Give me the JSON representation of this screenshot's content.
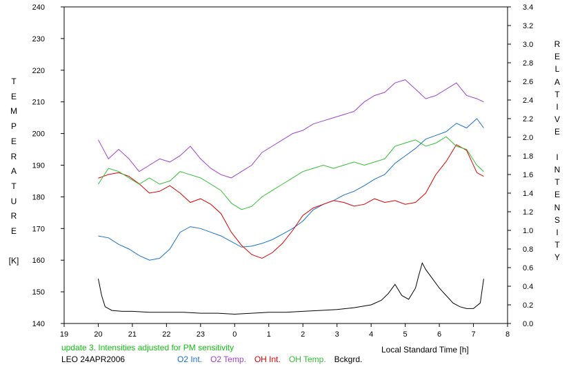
{
  "chart_data": {
    "type": "line",
    "xlabel": "Local Standard Time [h]",
    "ylabel_left": [
      "T",
      "E",
      "M",
      "P",
      "E",
      "R",
      "A",
      "T",
      "U",
      "R",
      "E",
      "",
      "[K]"
    ],
    "ylabel_right": [
      "R",
      "E",
      "L",
      "A",
      "T",
      "I",
      "V",
      "E",
      "",
      "I",
      "N",
      "T",
      "E",
      "N",
      "S",
      "I",
      "T",
      "Y"
    ],
    "x_ticks": [
      "19",
      "20",
      "21",
      "22",
      "23",
      "0",
      "1",
      "2",
      "3",
      "4",
      "5",
      "6",
      "7",
      "8"
    ],
    "y_left_ticks": [
      "140",
      "150",
      "160",
      "170",
      "180",
      "190",
      "200",
      "210",
      "220",
      "230",
      "240"
    ],
    "y_right_ticks": [
      "0.0",
      "0.2",
      "0.4",
      "0.6",
      "0.8",
      "1.0",
      "1.2",
      "1.4",
      "1.6",
      "1.8",
      "2.0",
      "2.2",
      "2.4",
      "2.6",
      "2.8",
      "3.0",
      "3.2",
      "3.4"
    ],
    "xlim": [
      19,
      32
    ],
    "ylim_left": [
      140,
      240
    ],
    "ylim_right": [
      0,
      3.4
    ],
    "grid": false,
    "note": "update 3. Intensities adjusted for PM sensitivity",
    "site_date": "LEO 24APR2006",
    "series": [
      {
        "name": "O2 Int.",
        "axis": "right",
        "color": "#1a6fd0",
        "x": [
          20.0,
          20.3,
          20.6,
          20.9,
          21.2,
          21.5,
          21.8,
          22.1,
          22.4,
          22.7,
          23.0,
          23.3,
          23.6,
          23.9,
          24.2,
          24.5,
          24.8,
          25.1,
          25.4,
          25.7,
          26.0,
          26.3,
          26.6,
          26.9,
          27.2,
          27.5,
          27.8,
          28.1,
          28.4,
          28.7,
          29.0,
          29.3,
          29.6,
          29.9,
          30.2,
          30.5,
          30.8,
          31.1,
          31.3
        ],
        "y": [
          0.94,
          0.92,
          0.85,
          0.8,
          0.73,
          0.68,
          0.7,
          0.8,
          0.98,
          1.04,
          1.02,
          0.98,
          0.94,
          0.88,
          0.82,
          0.83,
          0.86,
          0.9,
          0.96,
          1.02,
          1.1,
          1.22,
          1.28,
          1.32,
          1.38,
          1.42,
          1.48,
          1.55,
          1.6,
          1.72,
          1.8,
          1.88,
          1.98,
          2.02,
          2.06,
          2.15,
          2.1,
          2.2,
          2.1
        ]
      },
      {
        "name": "O2 Temp.",
        "axis": "left",
        "color": "#a040d0",
        "x": [
          20.0,
          20.3,
          20.6,
          20.9,
          21.2,
          21.5,
          21.8,
          22.1,
          22.4,
          22.7,
          23.0,
          23.3,
          23.6,
          23.9,
          24.2,
          24.5,
          24.8,
          25.1,
          25.4,
          25.7,
          26.0,
          26.3,
          26.6,
          26.9,
          27.2,
          27.5,
          27.8,
          28.1,
          28.4,
          28.7,
          29.0,
          29.3,
          29.6,
          29.9,
          30.2,
          30.5,
          30.8,
          31.1,
          31.3
        ],
        "y": [
          198,
          192,
          195,
          192,
          188,
          190,
          192,
          191,
          193,
          196,
          192,
          189,
          187,
          186,
          188,
          190,
          194,
          196,
          198,
          200,
          201,
          203,
          204,
          205,
          206,
          207,
          210,
          212,
          213,
          216,
          217,
          214,
          211,
          212,
          214,
          216,
          212,
          211,
          210
        ]
      },
      {
        "name": "OH Int.",
        "axis": "right",
        "color": "#dd0000",
        "x": [
          20.0,
          20.3,
          20.6,
          20.9,
          21.2,
          21.5,
          21.8,
          22.1,
          22.4,
          22.7,
          23.0,
          23.3,
          23.6,
          23.9,
          24.2,
          24.5,
          24.8,
          25.1,
          25.4,
          25.7,
          26.0,
          26.3,
          26.6,
          26.9,
          27.2,
          27.5,
          27.8,
          28.1,
          28.4,
          28.7,
          29.0,
          29.3,
          29.6,
          29.9,
          30.2,
          30.5,
          30.8,
          31.1,
          31.3
        ],
        "y": [
          1.56,
          1.6,
          1.62,
          1.58,
          1.5,
          1.4,
          1.42,
          1.48,
          1.4,
          1.3,
          1.34,
          1.28,
          1.18,
          0.98,
          0.84,
          0.74,
          0.7,
          0.76,
          0.86,
          1.0,
          1.16,
          1.24,
          1.28,
          1.32,
          1.3,
          1.26,
          1.28,
          1.34,
          1.3,
          1.32,
          1.28,
          1.3,
          1.4,
          1.6,
          1.74,
          1.92,
          1.86,
          1.62,
          1.58
        ]
      },
      {
        "name": "OH Temp.",
        "axis": "left",
        "color": "#30c030",
        "x": [
          20.0,
          20.3,
          20.6,
          20.9,
          21.2,
          21.5,
          21.8,
          22.1,
          22.4,
          22.7,
          23.0,
          23.3,
          23.6,
          23.9,
          24.2,
          24.5,
          24.8,
          25.1,
          25.4,
          25.7,
          26.0,
          26.3,
          26.6,
          26.9,
          27.2,
          27.5,
          27.8,
          28.1,
          28.4,
          28.7,
          29.0,
          29.3,
          29.6,
          29.9,
          30.2,
          30.5,
          30.8,
          31.1,
          31.3
        ],
        "y": [
          184,
          189,
          188,
          186,
          184,
          186,
          184,
          185,
          188,
          187,
          186,
          184,
          182,
          178,
          176,
          177,
          180,
          182,
          184,
          186,
          188,
          189,
          190,
          189,
          190,
          191,
          190,
          191,
          192,
          196,
          197,
          198,
          196,
          197,
          199,
          196,
          195,
          190,
          188
        ]
      },
      {
        "name": "Bckgrd.",
        "axis": "right",
        "color": "#000000",
        "x": [
          20.0,
          20.1,
          20.2,
          20.4,
          20.7,
          21.0,
          21.5,
          22.0,
          22.5,
          23.0,
          23.5,
          24.0,
          24.5,
          25.0,
          25.5,
          26.0,
          26.5,
          27.0,
          27.5,
          28.0,
          28.3,
          28.5,
          28.7,
          28.9,
          29.1,
          29.3,
          29.4,
          29.5,
          29.6,
          29.8,
          30.0,
          30.2,
          30.4,
          30.6,
          30.8,
          31.0,
          31.2,
          31.3
        ],
        "y": [
          0.48,
          0.3,
          0.18,
          0.14,
          0.13,
          0.13,
          0.12,
          0.12,
          0.12,
          0.11,
          0.11,
          0.1,
          0.11,
          0.12,
          0.12,
          0.13,
          0.14,
          0.15,
          0.17,
          0.2,
          0.25,
          0.32,
          0.42,
          0.3,
          0.26,
          0.38,
          0.52,
          0.65,
          0.58,
          0.48,
          0.38,
          0.3,
          0.22,
          0.18,
          0.16,
          0.16,
          0.22,
          0.48
        ]
      }
    ]
  }
}
